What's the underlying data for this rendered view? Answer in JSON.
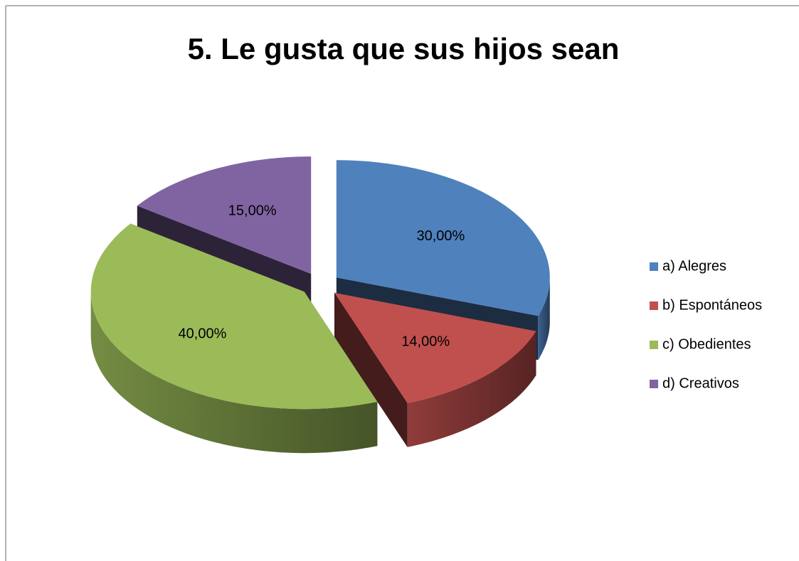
{
  "chart_data": {
    "type": "pie",
    "title": "5. Le gusta que sus hijos sean",
    "categories": [
      "a) Alegres",
      "b) Espontáneos",
      "c) Obedientes",
      "d) Creativos"
    ],
    "values": [
      30,
      14,
      40,
      15
    ],
    "value_labels": [
      "30,00%",
      "14,00%",
      "40,00%",
      "15,00%"
    ],
    "colors": [
      "#4f81bd",
      "#c0504d",
      "#9bbb59",
      "#8064a2"
    ],
    "legend": "right"
  }
}
